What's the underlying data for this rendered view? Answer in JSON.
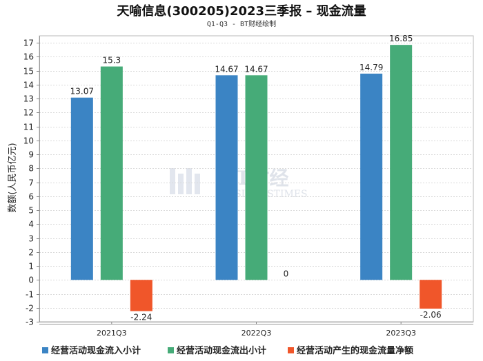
{
  "chart_data": {
    "type": "bar",
    "title": "天喻信息(300205)2023三季报 – 现金流量",
    "subtitle": "Q1-Q3 - BT财经绘制",
    "ylabel": "数额(人民币亿元)",
    "xlabel": "",
    "categories": [
      "2021Q3",
      "2022Q3",
      "2023Q3"
    ],
    "ylim": [
      -3,
      17.5
    ],
    "yticks": [
      -3,
      -2,
      -1,
      0,
      1,
      2,
      3,
      4,
      5,
      6,
      7,
      8,
      9,
      10,
      11,
      12,
      13,
      14,
      15,
      16,
      17
    ],
    "grid": true,
    "legend_position": "bottom",
    "series": [
      {
        "name": "经营活动现金流入小计",
        "color": "#3b84c4",
        "values": [
          13.07,
          14.67,
          14.79
        ],
        "labels": [
          "13.07",
          "14.67",
          "14.79"
        ]
      },
      {
        "name": "经营活动现金流出小计",
        "color": "#46ab78",
        "values": [
          15.3,
          14.67,
          16.85
        ],
        "labels": [
          "15.3",
          "14.67",
          "16.85"
        ]
      },
      {
        "name": "经营活动产生的现金流量净额",
        "color": "#f0562a",
        "values": [
          -2.24,
          0,
          -2.06
        ],
        "labels": [
          "-2.24",
          "0",
          "-2.06"
        ]
      }
    ],
    "watermark": {
      "line1": "BT财经",
      "line2": "BUSINESSTIMES"
    }
  }
}
